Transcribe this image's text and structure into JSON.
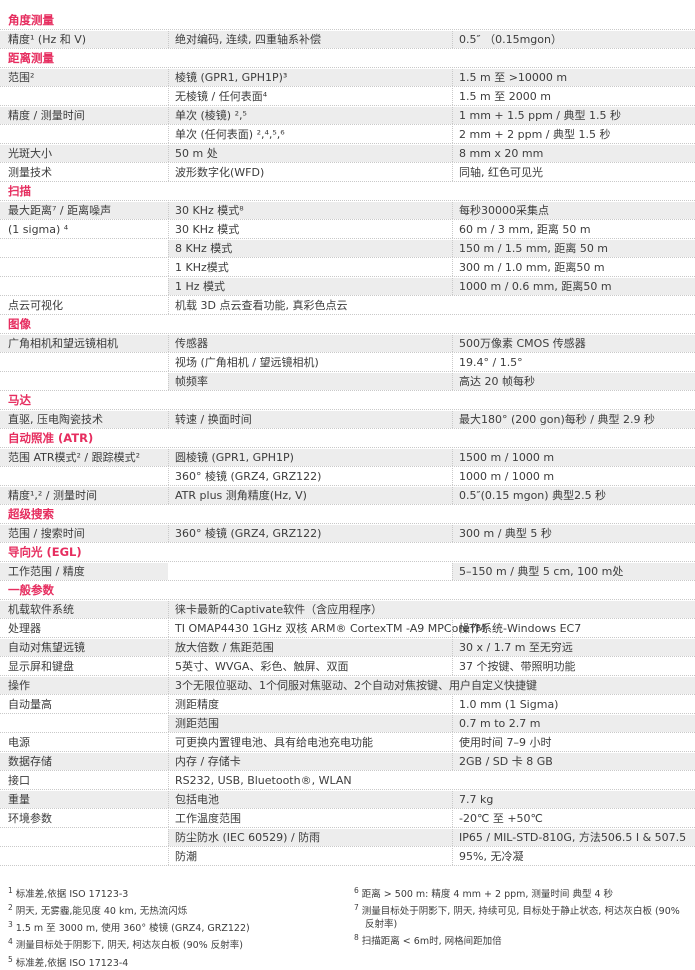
{
  "colors": {
    "accent_red": "#e62d5f",
    "row_stripe": "#ededed",
    "text": "#3c3c3c",
    "dotted_border": "#c9c9c9"
  },
  "table": {
    "sections": [
      {
        "header": "角度测量",
        "rows": [
          {
            "label": "精度¹ (Hz 和 V)",
            "desc": "绝对编码, 连续, 四重轴系补偿",
            "value": "0.5″ （0.15mgon）",
            "shade": true
          }
        ]
      },
      {
        "header": "距离测量",
        "rows": [
          {
            "label": "范围²",
            "desc": "棱镜 (GPR1, GPH1P)³",
            "value": "1.5 m 至 >10000 m",
            "shade": true
          },
          {
            "label": "",
            "desc": "无棱镜 / 任何表面⁴",
            "value": "1.5 m 至 2000 m",
            "shade": false
          },
          {
            "label": "精度 / 测量时间",
            "desc": "单次 (棱镜) ²,⁵",
            "value": "1 mm + 1.5 ppm / 典型 1.5 秒",
            "shade": true
          },
          {
            "label": "",
            "desc": "单次 (任何表面) ²,⁴,⁵,⁶",
            "value": "2 mm + 2 ppm / 典型 1.5 秒",
            "shade": false
          },
          {
            "label": "光斑大小",
            "desc": "50 m 处",
            "value": "8 mm x 20 mm",
            "shade": true
          },
          {
            "label": "测量技术",
            "desc": "波形数字化(WFD)",
            "value": "同轴, 红色可见光",
            "shade": false
          }
        ]
      },
      {
        "header": "扫描",
        "rows": [
          {
            "label": "最大距离⁷ / 距离噪声",
            "desc": "30 KHz 模式⁸",
            "value": "每秒30000采集点",
            "shade": true
          },
          {
            "label": "(1 sigma) ⁴",
            "desc": "30 KHz 模式",
            "value": "60 m / 3 mm, 距离 50 m",
            "shade": false
          },
          {
            "label": "",
            "desc": "8 KHz 模式",
            "value": "150 m / 1.5 mm, 距离 50 m",
            "shade": true
          },
          {
            "label": "",
            "desc": "1 KHz模式",
            "value": "300 m / 1.0 mm, 距离50 m",
            "shade": false
          },
          {
            "label": "",
            "desc": "1 Hz 模式",
            "value": "1000 m / 0.6 mm, 距离50 m",
            "shade": true
          },
          {
            "label": "点云可视化",
            "desc": "机载 3D 点云查看功能, 真彩色点云",
            "value": "",
            "span": true,
            "shade": false
          }
        ]
      },
      {
        "header": "图像",
        "rows": [
          {
            "label": "广角相机和望远镜相机",
            "desc": "传感器",
            "value": "500万像素 CMOS 传感器",
            "shade": true
          },
          {
            "label": "",
            "desc": "视场 (广角相机 / 望远镜相机)",
            "value": "19.4° / 1.5°",
            "shade": false
          },
          {
            "label": "",
            "desc": "帧频率",
            "value": "高达 20 帧每秒",
            "shade": true
          }
        ]
      },
      {
        "header": "马达",
        "rows": [
          {
            "label": "直驱, 压电陶瓷技术",
            "desc": "转速 / 换面时间",
            "value": "最大180° (200 gon)每秒 / 典型 2.9 秒",
            "shade": true
          }
        ]
      },
      {
        "header": "自动照准 (ATR)",
        "rows": [
          {
            "label": "范围 ATR模式² / 跟踪模式²",
            "desc": "圆棱镜 (GPR1, GPH1P)",
            "value": "1500 m / 1000 m",
            "shade": true
          },
          {
            "label": "",
            "desc": "360° 棱镜 (GRZ4, GRZ122)",
            "value": "1000 m / 1000 m",
            "shade": false
          },
          {
            "label": "精度¹,² / 测量时间",
            "desc": "ATR plus 测角精度(Hz, V)",
            "value": "0.5″(0.15 mgon) 典型2.5 秒",
            "shade": true
          }
        ]
      },
      {
        "header": "超级搜索",
        "rows": [
          {
            "label": "范围 / 搜索时间",
            "desc": "360° 棱镜 (GRZ4, GRZ122)",
            "value": "300 m / 典型 5 秒",
            "shade": true
          }
        ]
      },
      {
        "header": "导向光 (EGL)",
        "rows": [
          {
            "label": "工作范围 / 精度",
            "desc": "",
            "value": "5–150 m / 典型 5 cm, 100 m处",
            "shade": true
          }
        ]
      },
      {
        "header": "一般参数",
        "rows": [
          {
            "label": "机载软件系统",
            "desc": "徕卡最新的Captivate软件（含应用程序）",
            "value": "",
            "span": true,
            "shade": true
          },
          {
            "label": "处理器",
            "desc": "TI OMAP4430 1GHz 双核 ARM® CortexTM -A9 MPCoreTM",
            "value": "操作系统-Windows EC7",
            "shade": false
          },
          {
            "label": "自动对焦望远镜",
            "desc": "放大倍数 / 焦距范围",
            "value": "30 x / 1.7 m 至无穷远",
            "shade": true
          },
          {
            "label": "显示屏和键盘",
            "desc": "5英寸、WVGA、彩色、触屏、双面",
            "value": "37 个按键、带照明功能",
            "shade": false
          },
          {
            "label": "操作",
            "desc": "3个无限位驱动、1个伺服对焦驱动、2个自动对焦按键、用户自定义快捷键",
            "value": "",
            "span": true,
            "shade": true
          },
          {
            "label": "自动量高",
            "desc": "测距精度",
            "value": "1.0 mm (1 Sigma)",
            "shade": false
          },
          {
            "label": "",
            "desc": "测距范围",
            "value": "0.7 m to 2.7 m",
            "shade": true
          },
          {
            "label": "电源",
            "desc": "可更换内置锂电池、具有给电池充电功能",
            "value": "使用时间 7–9 小时",
            "shade": false
          },
          {
            "label": "数据存储",
            "desc": "内存 / 存储卡",
            "value": "2GB / SD 卡 8 GB",
            "shade": true
          },
          {
            "label": "接口",
            "desc": "RS232, USB, Bluetooth®, WLAN",
            "value": "",
            "span": true,
            "shade": false
          },
          {
            "label": "重量",
            "desc": "包括电池",
            "value": "7.7 kg",
            "shade": true
          },
          {
            "label": "环境参数",
            "desc": "工作温度范围",
            "value": "-20℃ 至 +50℃",
            "shade": false
          },
          {
            "label": "",
            "desc": "防尘防水 (IEC 60529) / 防雨",
            "value": "IP65 / MIL-STD-810G, 方法506.5 I & 507.5",
            "shade": true
          },
          {
            "label": "",
            "desc": "防潮",
            "value": "95%, 无冷凝",
            "shade": false
          }
        ]
      }
    ]
  },
  "footnotes": {
    "left": [
      {
        "sup": "1",
        "text": "标准差,依据 ISO 17123-3"
      },
      {
        "sup": "2",
        "text": "阴天, 无雾霾,能见度 40 km, 无热流闪烁"
      },
      {
        "sup": "3",
        "text": "1.5 m 至 3000 m, 使用 360° 棱镜 (GRZ4, GRZ122)"
      },
      {
        "sup": "4",
        "text": "测量目标处于阴影下, 阴天, 柯达灰白板 (90% 反射率)"
      },
      {
        "sup": "5",
        "text": "标准差,依据 ISO 17123-4"
      }
    ],
    "right": [
      {
        "sup": "6",
        "text": "距离 > 500 m: 精度 4 mm + 2 ppm, 测量时间 典型 4 秒"
      },
      {
        "sup": "7",
        "text": "测量目标处于阴影下, 阴天, 持续可见, 目标处于静止状态, 柯达灰白板 (90% 反射率)"
      },
      {
        "sup": "8",
        "text": "扫描距离 < 6m时, 网格间距加倍"
      }
    ]
  }
}
